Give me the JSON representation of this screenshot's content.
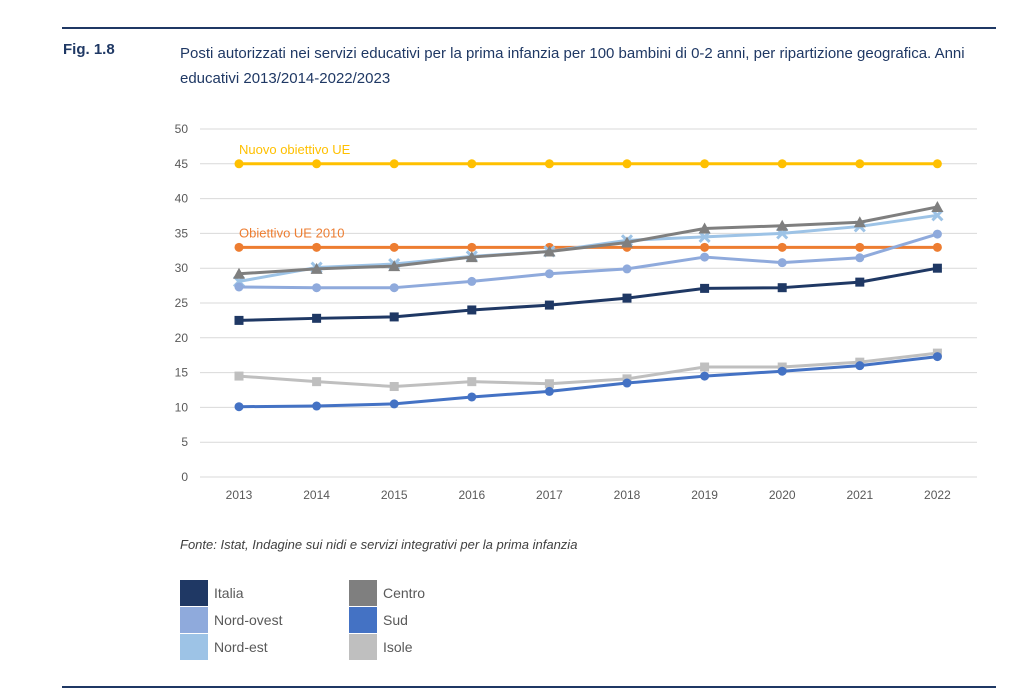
{
  "header": {
    "fig_label": "Fig. 1.8",
    "title": "Posti autorizzati nei servizi educativi per la prima infanzia per 100 bambini di 0-2 anni,  per ripartizione geografica. Anni educativi 2013/2014-2022/2023"
  },
  "source": "Fonte: Istat, Indagine sui nidi e servizi integrativi per la prima infanzia",
  "chart_data": {
    "type": "line",
    "title": "",
    "xlabel": "",
    "ylabel": "",
    "ylim": [
      0,
      50
    ],
    "yticks": [
      "0",
      "5",
      "10",
      "15",
      "20",
      "25",
      "30",
      "35",
      "40",
      "45",
      "50"
    ],
    "categories": [
      "2013",
      "2014",
      "2015",
      "2016",
      "2017",
      "2018",
      "2019",
      "2020",
      "2021",
      "2022"
    ],
    "grid": true,
    "legend_position": "bottom",
    "series": [
      {
        "name": "Isole",
        "color": "#bfbfbf",
        "marker": "square",
        "values": [
          14.5,
          13.7,
          13.0,
          13.7,
          13.4,
          14.1,
          15.8,
          15.8,
          16.5,
          17.8
        ]
      },
      {
        "name": "Sud",
        "color": "#4472c4",
        "marker": "circle",
        "values": [
          10.1,
          10.2,
          10.5,
          11.5,
          12.3,
          13.5,
          14.5,
          15.2,
          16.0,
          17.3
        ]
      },
      {
        "name": "Nord-est",
        "color": "#9dc3e6",
        "marker": "x",
        "values": [
          28.1,
          30.1,
          30.6,
          31.7,
          32.4,
          34.0,
          34.5,
          35.0,
          36.0,
          37.6
        ]
      },
      {
        "name": "Nord-ovest",
        "color": "#8faadc",
        "marker": "circle",
        "values": [
          27.3,
          27.2,
          27.2,
          28.1,
          29.2,
          29.9,
          31.6,
          30.8,
          31.5,
          34.9
        ]
      },
      {
        "name": "Centro",
        "color": "#7f7f7f",
        "marker": "triangle",
        "values": [
          29.2,
          29.9,
          30.3,
          31.6,
          32.4,
          33.7,
          35.7,
          36.1,
          36.6,
          38.8
        ]
      },
      {
        "name": "Italia",
        "color": "#1f3864",
        "marker": "square",
        "values": [
          22.5,
          22.8,
          23.0,
          24.0,
          24.7,
          25.7,
          27.1,
          27.2,
          28.0,
          30.0
        ]
      }
    ],
    "reference_lines": [
      {
        "name": "Nuovo obiettivo UE",
        "value": 45,
        "color": "#ffc000"
      },
      {
        "name": "Obiettivo UE 2010",
        "value": 33,
        "color": "#ed7d31"
      }
    ]
  },
  "legend": {
    "items": [
      {
        "label": "Italia",
        "color": "#1f3864"
      },
      {
        "label": "Nord-ovest",
        "color": "#8faadc"
      },
      {
        "label": "Nord-est",
        "color": "#9dc3e6"
      },
      {
        "label": "Centro",
        "color": "#7f7f7f"
      },
      {
        "label": "Sud",
        "color": "#4472c4"
      },
      {
        "label": "Isole",
        "color": "#bfbfbf"
      }
    ]
  }
}
